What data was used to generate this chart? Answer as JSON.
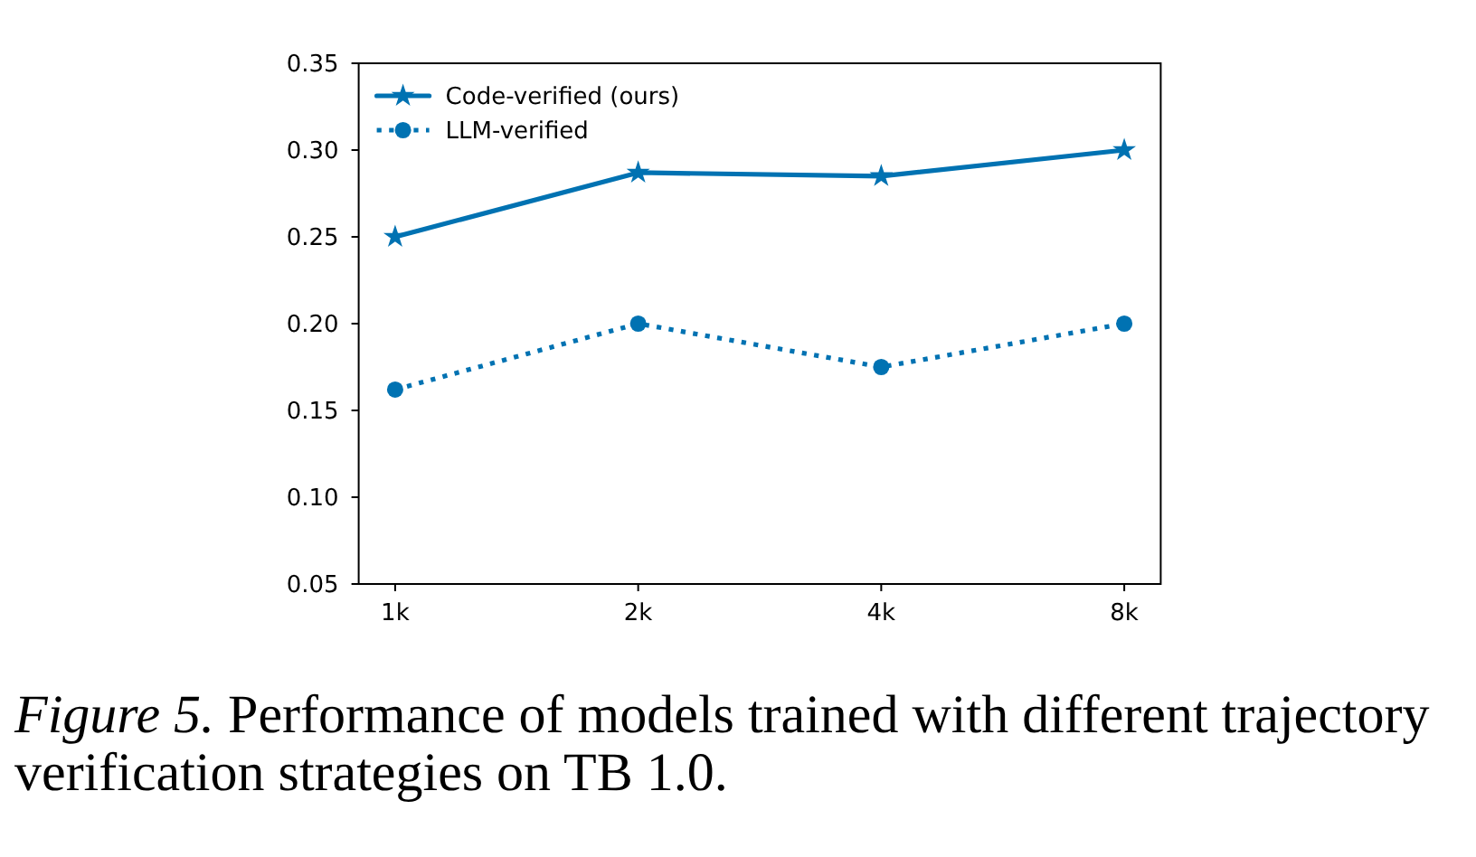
{
  "chart_data": {
    "type": "line",
    "categories": [
      "1k",
      "2k",
      "4k",
      "8k"
    ],
    "series": [
      {
        "name": "Code-verified (ours)",
        "color": "#0072b2",
        "values": [
          0.25,
          0.287,
          0.285,
          0.3
        ],
        "marker": "star",
        "line_style": "solid"
      },
      {
        "name": "LLM-verified",
        "color": "#0072b2",
        "values": [
          0.162,
          0.2,
          0.175,
          0.2
        ],
        "marker": "circle",
        "line_style": "dotted"
      }
    ],
    "ylim": [
      0.05,
      0.35
    ],
    "yticks": [
      0.05,
      {
        "value": 0.1,
        "label": "0.10"
      },
      0.15,
      {
        "value": 0.2,
        "label": "0.20"
      },
      0.25,
      {
        "value": 0.3,
        "label": "0.30"
      },
      0.35
    ],
    "legend": "top left",
    "annotations": [
      "Figure 5. Performance of models trained with different trajectory verification strategies on TB 1.0."
    ]
  }
}
